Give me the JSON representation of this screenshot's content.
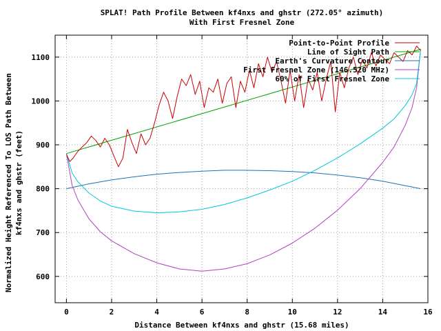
{
  "chart_data": {
    "type": "line",
    "title": [
      "SPLAT! Path Profile Between kf4nxs and ghstr (272.05° azimuth)",
      "With First Fresnel Zone"
    ],
    "xlabel": "Distance Between kf4nxs and ghstr (15.68 miles)",
    "ylabel": [
      "Normalized Height Referenced To LOS Path Between",
      "kf4nxs and ghstr (feet)"
    ],
    "xlim": [
      -0.5,
      16
    ],
    "ylim": [
      540,
      1150
    ],
    "x_ticks": [
      0,
      2,
      4,
      6,
      8,
      10,
      12,
      14,
      16
    ],
    "y_ticks": [
      600,
      700,
      800,
      900,
      1000,
      1100
    ],
    "grid": true,
    "legend_position": "top-right",
    "path_length": 15.68,
    "series": [
      {
        "name": "Point-to-Point Profile",
        "color": "#cc0000",
        "x": [
          0.0,
          0.15,
          0.3,
          0.5,
          0.7,
          0.9,
          1.1,
          1.3,
          1.5,
          1.7,
          1.9,
          2.1,
          2.3,
          2.5,
          2.7,
          2.9,
          3.1,
          3.3,
          3.5,
          3.7,
          3.9,
          4.1,
          4.3,
          4.5,
          4.7,
          4.9,
          5.1,
          5.3,
          5.5,
          5.7,
          5.9,
          6.1,
          6.3,
          6.5,
          6.7,
          6.9,
          7.1,
          7.3,
          7.5,
          7.7,
          7.9,
          8.1,
          8.3,
          8.5,
          8.7,
          8.9,
          9.1,
          9.3,
          9.5,
          9.7,
          9.9,
          10.1,
          10.3,
          10.5,
          10.7,
          10.9,
          11.1,
          11.3,
          11.5,
          11.7,
          11.9,
          12.1,
          12.3,
          12.5,
          12.7,
          12.9,
          13.1,
          13.3,
          13.5,
          13.7,
          13.9,
          14.1,
          14.3,
          14.5,
          14.7,
          14.9,
          15.1,
          15.3,
          15.5,
          15.68
        ],
        "values": [
          878,
          862,
          870,
          885,
          895,
          905,
          920,
          910,
          895,
          915,
          900,
          875,
          850,
          870,
          935,
          905,
          880,
          925,
          900,
          915,
          950,
          990,
          1020,
          1000,
          960,
          1010,
          1050,
          1035,
          1060,
          1015,
          1045,
          985,
          1030,
          1020,
          1050,
          995,
          1040,
          1055,
          985,
          1045,
          1020,
          1070,
          1030,
          1085,
          1055,
          1100,
          1065,
          1090,
          1045,
          995,
          1070,
          1000,
          1060,
          985,
          1050,
          1025,
          1065,
          1000,
          1050,
          1090,
          975,
          1065,
          1030,
          1075,
          1100,
          1060,
          1095,
          1075,
          1110,
          1080,
          1105,
          1095,
          1085,
          1110,
          1100,
          1090,
          1115,
          1105,
          1125,
          1115
        ]
      },
      {
        "name": "Line of Sight Path",
        "color": "#00a000",
        "x": [
          0,
          15.68
        ],
        "values": [
          880,
          1118
        ]
      },
      {
        "name": "Earth's Curvature Contour",
        "color": "#1e6fb4",
        "x": [
          0,
          1,
          2,
          3,
          4,
          5,
          6,
          7,
          7.84,
          9,
          10,
          11,
          12,
          13,
          14,
          15,
          15.68
        ],
        "values": [
          800,
          811,
          820,
          827,
          833,
          837,
          840,
          842,
          842,
          841,
          839,
          836,
          831,
          825,
          817,
          807,
          800
        ]
      },
      {
        "name": "First Fresnel Zone (146.520 MHz)",
        "color": "#b040c0",
        "x": [
          0,
          0.25,
          0.5,
          1,
          1.5,
          2,
          3,
          4,
          5,
          6,
          7,
          8,
          9,
          10,
          11,
          12,
          13,
          14,
          14.5,
          15,
          15.3,
          15.5,
          15.68
        ],
        "values": [
          880,
          808,
          775,
          731,
          702,
          681,
          652,
          631,
          617,
          612,
          617,
          629,
          649,
          676,
          710,
          751,
          800,
          860,
          895,
          945,
          985,
          1030,
          1118
        ]
      },
      {
        "name": "60% of First Fresnel Zone",
        "color": "#00c8d8",
        "x": [
          0,
          0.25,
          0.5,
          1,
          1.5,
          2,
          3,
          4,
          5,
          6,
          7,
          8,
          9,
          10,
          11,
          12,
          13,
          14,
          14.5,
          15,
          15.3,
          15.5,
          15.68
        ],
        "values": [
          880,
          836,
          816,
          790,
          772,
          760,
          749,
          745,
          747,
          753,
          764,
          779,
          797,
          817,
          842,
          870,
          902,
          938,
          959,
          990,
          1014,
          1040,
          1118
        ]
      }
    ]
  }
}
